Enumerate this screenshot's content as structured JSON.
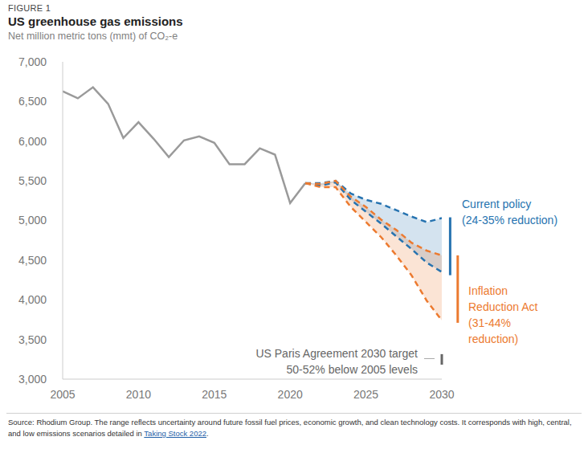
{
  "figure_label": "FIGURE 1",
  "chart_data": {
    "type": "line",
    "title": "US greenhouse gas emissions",
    "subtitle": "Net million metric tons (mmt) of CO₂-e",
    "x": [
      2005,
      2006,
      2007,
      2008,
      2009,
      2010,
      2011,
      2012,
      2013,
      2014,
      2015,
      2016,
      2017,
      2018,
      2019,
      2020,
      2021,
      2022,
      2023,
      2024,
      2025,
      2026,
      2027,
      2028,
      2029,
      2030
    ],
    "xlim": [
      2005,
      2030
    ],
    "xticks": [
      2005,
      2010,
      2015,
      2020,
      2025,
      2030
    ],
    "ylim": [
      3000,
      7000
    ],
    "yticks": [
      {
        "value": 3000,
        "label": "3,000"
      },
      {
        "value": 3500,
        "label": "3,500"
      },
      {
        "value": 4000,
        "label": "4,000"
      },
      {
        "value": 4500,
        "label": "4,500"
      },
      {
        "value": 5000,
        "label": "5,000"
      },
      {
        "value": 5500,
        "label": "5,500"
      },
      {
        "value": 6000,
        "label": "6,000"
      },
      {
        "value": 6500,
        "label": "6,500"
      },
      {
        "value": 7000,
        "label": "7,000"
      }
    ],
    "grid": false,
    "series": [
      {
        "color": "#9a9a9a",
        "line_style": "solid",
        "values": [
          6630,
          6540,
          6680,
          6470,
          6040,
          6240,
          6030,
          5800,
          6010,
          6060,
          5980,
          5710,
          5710,
          5910,
          5830,
          5220,
          5470,
          null,
          null,
          null,
          null,
          null,
          null,
          null,
          null,
          null
        ]
      }
    ],
    "bands": [
      {
        "label": [
          "Current policy",
          "(24-35% reduction)"
        ],
        "color": "#2673b0",
        "line_style": "dashed",
        "high": [
          null,
          null,
          null,
          null,
          null,
          null,
          null,
          null,
          null,
          null,
          null,
          null,
          null,
          null,
          null,
          null,
          5470,
          5470,
          5500,
          5340,
          5260,
          5210,
          5130,
          5050,
          4980,
          5030
        ],
        "low": [
          null,
          null,
          null,
          null,
          null,
          null,
          null,
          null,
          null,
          null,
          null,
          null,
          null,
          null,
          null,
          null,
          5470,
          5440,
          5480,
          5260,
          5110,
          4960,
          4800,
          4640,
          4470,
          4350
        ],
        "range": [
          4310,
          5040
        ]
      },
      {
        "label": [
          "Inflation",
          "Reduction Act",
          "(31-44%",
          "reduction)"
        ],
        "color": "#ec7a2f",
        "line_style": "dashed",
        "high": [
          null,
          null,
          null,
          null,
          null,
          null,
          null,
          null,
          null,
          null,
          null,
          null,
          null,
          null,
          null,
          null,
          5470,
          5460,
          5500,
          5300,
          5170,
          5010,
          4880,
          4720,
          4620,
          4560
        ],
        "low": [
          null,
          null,
          null,
          null,
          null,
          null,
          null,
          null,
          null,
          null,
          null,
          null,
          null,
          null,
          null,
          null,
          5470,
          5420,
          5420,
          5170,
          4980,
          4790,
          4560,
          4310,
          3990,
          3740
        ],
        "range": [
          3710,
          4560
        ]
      }
    ],
    "target": {
      "label": [
        "US Paris Agreement 2030 target",
        "50-52% below 2005 levels"
      ],
      "color": "#666666",
      "range": [
        3182,
        3315
      ]
    }
  },
  "source": [
    "Source: Rhodium Group. The range reflects uncertainty around future fossil fuel prices, economic growth, and clean technology costs. It corresponds with high, central, and low emissions scenarios detailed in ",
    "Taking Stock 2022",
    "."
  ]
}
